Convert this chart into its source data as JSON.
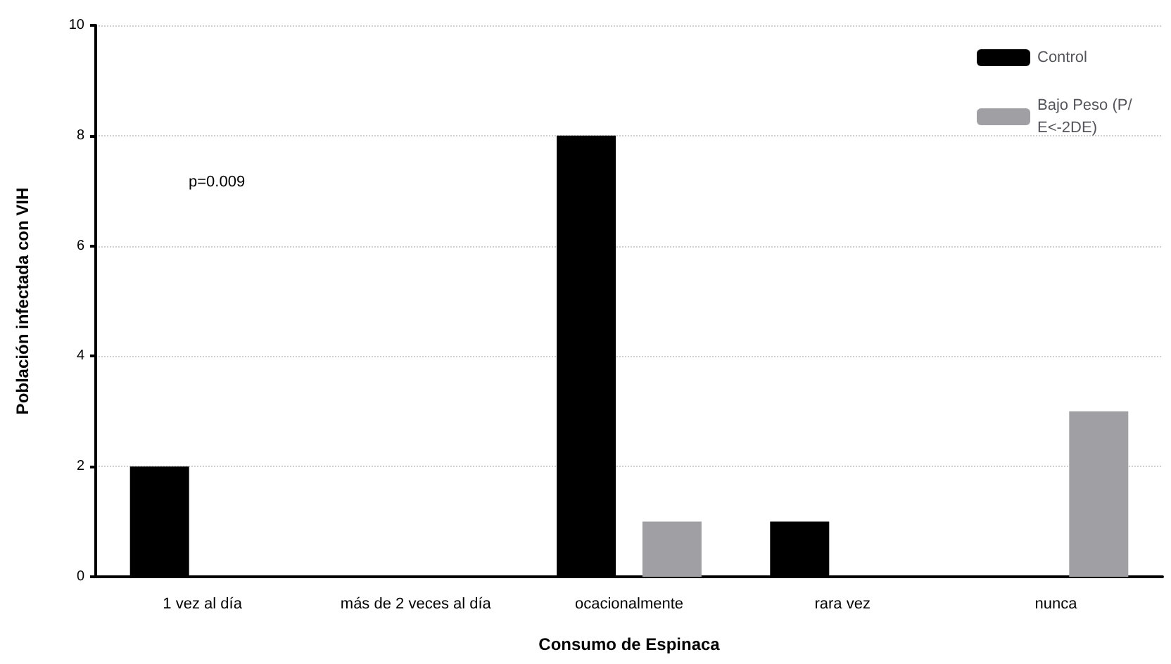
{
  "chart_data": {
    "type": "bar",
    "xlabel": "Consumo de Espinaca",
    "ylabel": "Población infectada con VIH",
    "categories": [
      "1 vez al día",
      "más de 2 veces al día",
      "ocacionalmente",
      "rara vez",
      "nunca"
    ],
    "series": [
      {
        "name": "Control",
        "color": "#000000",
        "values": [
          2,
          0,
          8,
          1,
          0
        ]
      },
      {
        "name": "Bajo Peso (P/E<-2DE)",
        "color": "#a0a0a4",
        "values": [
          0,
          0,
          1,
          0,
          3
        ]
      }
    ],
    "ylim": [
      0,
      10
    ],
    "yticks": [
      0,
      2,
      4,
      6,
      8,
      10
    ],
    "grid": "y",
    "legend": "top right",
    "annotations": [
      "p=0.009"
    ]
  }
}
